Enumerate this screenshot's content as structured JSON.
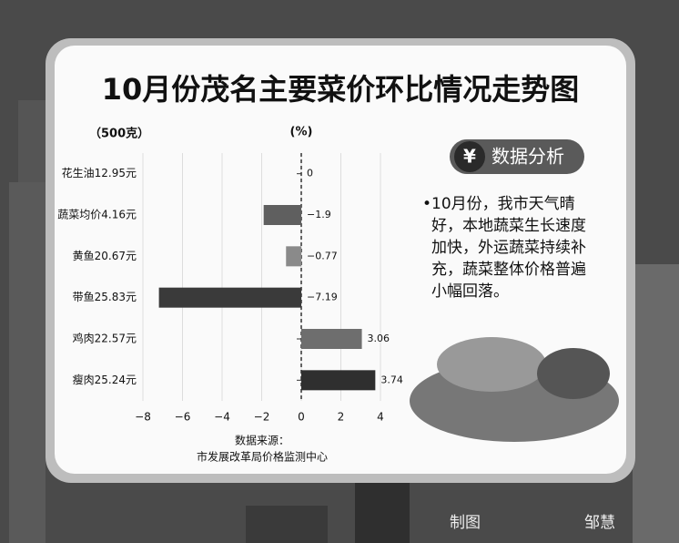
{
  "chart_data": {
    "type": "bar",
    "orientation": "horizontal",
    "title": "10月份茂名主要菜价环比情况走势图",
    "category_axis_label": "（500克）",
    "value_axis_label": "(%)",
    "categories": [
      "花生油12.95元",
      "蔬菜均价4.16元",
      "黄鱼20.67元",
      "带鱼25.83元",
      "鸡肉22.57元",
      "瘦肉25.24元"
    ],
    "values": [
      0,
      -1.9,
      -0.77,
      -7.19,
      3.06,
      3.74
    ],
    "value_labels": [
      "0",
      "−1.9",
      "−0.77",
      "−7.19",
      "3.06",
      "3.74"
    ],
    "colors": [
      "#555555",
      "#5f5f5f",
      "#8a8a8a",
      "#3a3a3a",
      "#6e6e6e",
      "#2f2f2f"
    ],
    "xlim": [
      -8,
      4
    ],
    "xticks": [
      {
        "value": -8,
        "label": "−8"
      },
      {
        "value": -6,
        "label": "−6"
      },
      {
        "value": -4,
        "label": "−4"
      },
      {
        "value": -2,
        "label": "−2"
      },
      0,
      2,
      4
    ],
    "grid": true,
    "source": [
      "数据来源：",
      "市发展改革局价格监测中心"
    ]
  },
  "panel": {
    "badge_icon": "¥",
    "badge": "数据分析",
    "text": "10月份，我市天气晴好，本地蔬菜生长速度加快，外运蔬菜持续补充，蔬菜整体价格普遍小幅回落。"
  },
  "credit": {
    "label": "制图",
    "author": "邹慧"
  }
}
